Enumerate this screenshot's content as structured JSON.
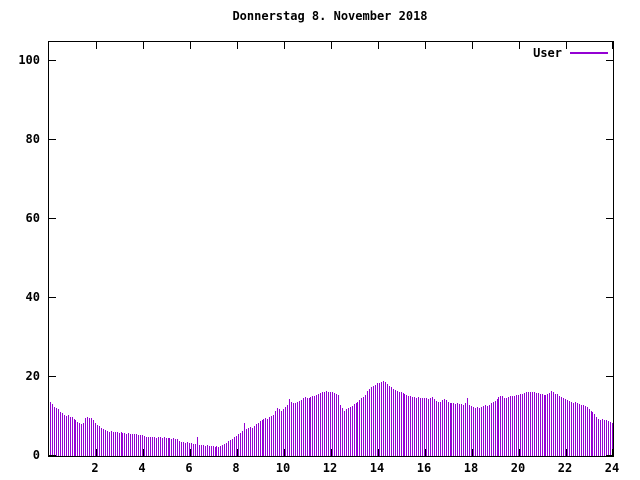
{
  "title": "Donnerstag 8. November 2018",
  "legend": {
    "label": "User",
    "color": "#9400d3"
  },
  "chart_data": {
    "type": "bar",
    "title": "Donnerstag 8. November 2018",
    "xlabel": "",
    "ylabel": "",
    "legend_position": "top-right",
    "grid": false,
    "bar_color": "#9400d3",
    "frame_color": "#000000",
    "xlim": [
      0,
      24
    ],
    "ylim": [
      0,
      105
    ],
    "x_ticks": [
      2,
      4,
      6,
      8,
      10,
      12,
      14,
      16,
      18,
      20,
      22,
      24
    ],
    "y_ticks": [
      0,
      20,
      40,
      60,
      80,
      100
    ],
    "interval_minutes": 5,
    "series": [
      {
        "name": "User",
        "color": "#9400d3",
        "values": [
          13.6,
          13.1,
          12.5,
          12.1,
          11.8,
          11.2,
          10.8,
          10.5,
          10.2,
          10.4,
          10.0,
          9.8,
          9.4,
          9.0,
          8.6,
          8.3,
          8.1,
          8.4,
          9.6,
          9.9,
          9.7,
          9.5,
          9.0,
          8.4,
          7.8,
          7.5,
          7.2,
          6.9,
          6.6,
          6.4,
          6.2,
          6.3,
          6.1,
          6.0,
          6.1,
          5.9,
          6.0,
          5.8,
          5.9,
          5.7,
          5.8,
          5.6,
          5.7,
          5.5,
          5.6,
          5.4,
          5.3,
          5.2,
          5.0,
          4.9,
          4.8,
          4.9,
          4.7,
          4.8,
          4.6,
          4.7,
          4.8,
          4.6,
          4.7,
          4.5,
          4.6,
          4.5,
          4.4,
          4.5,
          4.3,
          4.4,
          3.8,
          3.6,
          3.5,
          3.4,
          3.5,
          3.3,
          3.2,
          3.1,
          3.0,
          4.9,
          2.9,
          2.8,
          2.7,
          2.6,
          2.7,
          2.5,
          2.6,
          2.5,
          2.4,
          2.5,
          2.4,
          2.6,
          2.8,
          3.0,
          3.4,
          3.7,
          4.0,
          4.4,
          4.7,
          5.1,
          5.5,
          5.9,
          6.3,
          8.3,
          6.8,
          7.1,
          7.4,
          7.2,
          7.6,
          8.0,
          8.4,
          8.8,
          9.1,
          9.3,
          9.5,
          9.4,
          9.8,
          10.1,
          10.4,
          11.3,
          12.1,
          11.8,
          11.5,
          11.9,
          12.4,
          13.0,
          14.5,
          13.8,
          13.5,
          13.3,
          13.6,
          13.9,
          14.3,
          14.7,
          14.9,
          14.6,
          14.8,
          15.0,
          15.2,
          15.1,
          15.4,
          15.7,
          16.0,
          16.3,
          16.2,
          16.4,
          16.1,
          16.3,
          16.2,
          16.0,
          15.8,
          15.5,
          13.0,
          12.2,
          11.4,
          11.8,
          12.1,
          12.4,
          12.7,
          13.1,
          13.5,
          13.8,
          14.2,
          14.6,
          14.9,
          15.5,
          16.4,
          17.0,
          17.4,
          17.8,
          18.1,
          18.4,
          18.6,
          18.8,
          19.0,
          18.7,
          18.3,
          17.8,
          17.4,
          17.0,
          16.7,
          16.5,
          16.3,
          16.1,
          16.0,
          15.8,
          15.5,
          15.3,
          15.1,
          15.0,
          14.9,
          14.8,
          14.9,
          14.7,
          14.8,
          14.6,
          14.7,
          14.5,
          14.6,
          15.0,
          14.4,
          13.9,
          13.6,
          13.8,
          14.2,
          14.5,
          14.1,
          13.8,
          13.5,
          13.3,
          13.4,
          13.2,
          13.3,
          13.1,
          13.2,
          13.0,
          13.3,
          14.8,
          13.0,
          12.7,
          12.4,
          12.2,
          12.3,
          12.1,
          12.4,
          12.6,
          12.8,
          12.7,
          13.0,
          13.3,
          13.6,
          13.9,
          14.4,
          15.0,
          15.3,
          15.1,
          14.8,
          14.6,
          14.9,
          15.1,
          15.3,
          15.2,
          15.4,
          15.5,
          15.6,
          15.8,
          16.0,
          16.2,
          16.3,
          16.1,
          16.3,
          16.2,
          16.0,
          15.9,
          15.8,
          15.6,
          15.5,
          15.4,
          15.6,
          15.9,
          16.4,
          16.1,
          15.8,
          15.6,
          15.3,
          15.0,
          14.7,
          14.4,
          14.1,
          13.9,
          13.7,
          13.5,
          13.8,
          13.4,
          13.1,
          12.8,
          13.0,
          12.6,
          12.3,
          11.9,
          11.5,
          11.1,
          10.6,
          10.0,
          9.4,
          9.2,
          9.3,
          9.1,
          9.0,
          8.9,
          8.6,
          8.3
        ]
      }
    ]
  }
}
